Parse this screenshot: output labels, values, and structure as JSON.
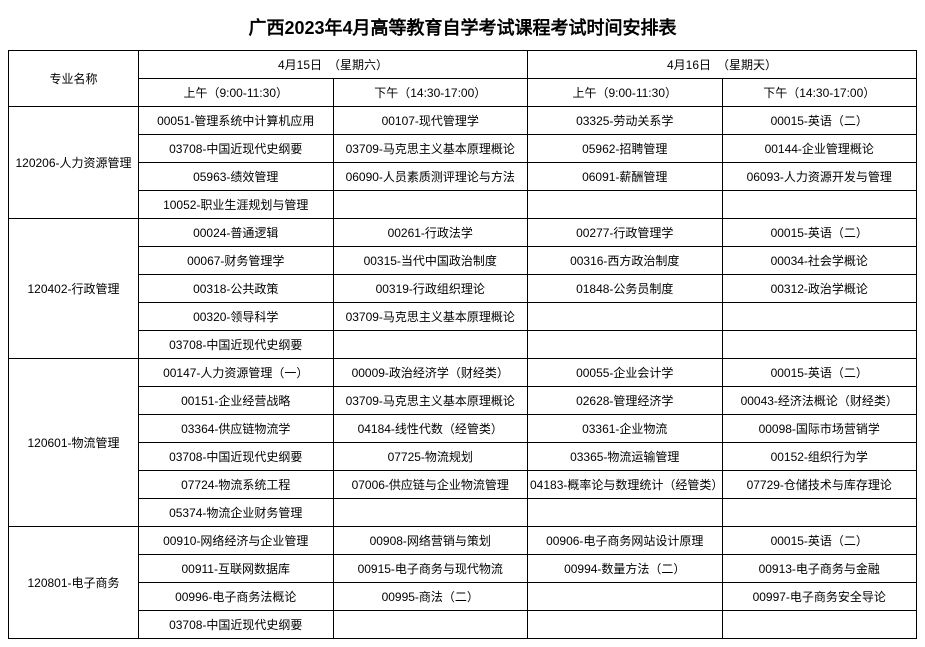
{
  "title": "广西2023年4月高等教育自学考试课程考试时间安排表",
  "header": {
    "majorCol": "专业名称",
    "day1": "4月15日　（星期六）",
    "day2": "4月16日　（星期天）",
    "slot1": "上午（9:00-11:30）",
    "slot2": "下午（14:30-17:00）",
    "slot3": "上午（9:00-11:30）",
    "slot4": "下午（14:30-17:00）"
  },
  "majors": [
    {
      "name": "120206-人力资源管理",
      "rows": [
        [
          "00051-管理系统中计算机应用",
          "00107-现代管理学",
          "03325-劳动关系学",
          "00015-英语（二）"
        ],
        [
          "03708-中国近现代史纲要",
          "03709-马克思主义基本原理概论",
          "05962-招聘管理",
          "00144-企业管理概论"
        ],
        [
          "05963-绩效管理",
          "06090-人员素质测评理论与方法",
          "06091-薪酬管理",
          "06093-人力资源开发与管理"
        ],
        [
          "10052-职业生涯规划与管理",
          "",
          "",
          ""
        ]
      ]
    },
    {
      "name": "120402-行政管理",
      "rows": [
        [
          "00024-普通逻辑",
          "00261-行政法学",
          "00277-行政管理学",
          "00015-英语（二）"
        ],
        [
          "00067-财务管理学",
          "00315-当代中国政治制度",
          "00316-西方政治制度",
          "00034-社会学概论"
        ],
        [
          "00318-公共政策",
          "00319-行政组织理论",
          "01848-公务员制度",
          "00312-政治学概论"
        ],
        [
          "00320-领导科学",
          "03709-马克思主义基本原理概论",
          "",
          ""
        ],
        [
          "03708-中国近现代史纲要",
          "",
          "",
          ""
        ]
      ]
    },
    {
      "name": "120601-物流管理",
      "rows": [
        [
          "00147-人力资源管理（一）",
          "00009-政治经济学（财经类）",
          "00055-企业会计学",
          "00015-英语（二）"
        ],
        [
          "00151-企业经营战略",
          "03709-马克思主义基本原理概论",
          "02628-管理经济学",
          "00043-经济法概论（财经类）"
        ],
        [
          "03364-供应链物流学",
          "04184-线性代数（经管类）",
          "03361-企业物流",
          "00098-国际市场营销学"
        ],
        [
          "03708-中国近现代史纲要",
          "07725-物流规划",
          "03365-物流运输管理",
          "00152-组织行为学"
        ],
        [
          "07724-物流系统工程",
          "07006-供应链与企业物流管理",
          "04183-概率论与数理统计（经管类）",
          "07729-仓储技术与库存理论"
        ],
        [
          "05374-物流企业财务管理",
          "",
          "",
          ""
        ]
      ]
    },
    {
      "name": "120801-电子商务",
      "rows": [
        [
          "00910-网络经济与企业管理",
          "00908-网络营销与策划",
          "00906-电子商务网站设计原理",
          "00015-英语（二）"
        ],
        [
          "00911-互联网数据库",
          "00915-电子商务与现代物流",
          "00994-数量方法（二）",
          "00913-电子商务与金融"
        ],
        [
          "00996-电子商务法概论",
          "00995-商法（二）",
          "",
          "00997-电子商务安全导论"
        ],
        [
          "03708-中国近现代史纲要",
          "",
          "",
          ""
        ]
      ]
    }
  ]
}
